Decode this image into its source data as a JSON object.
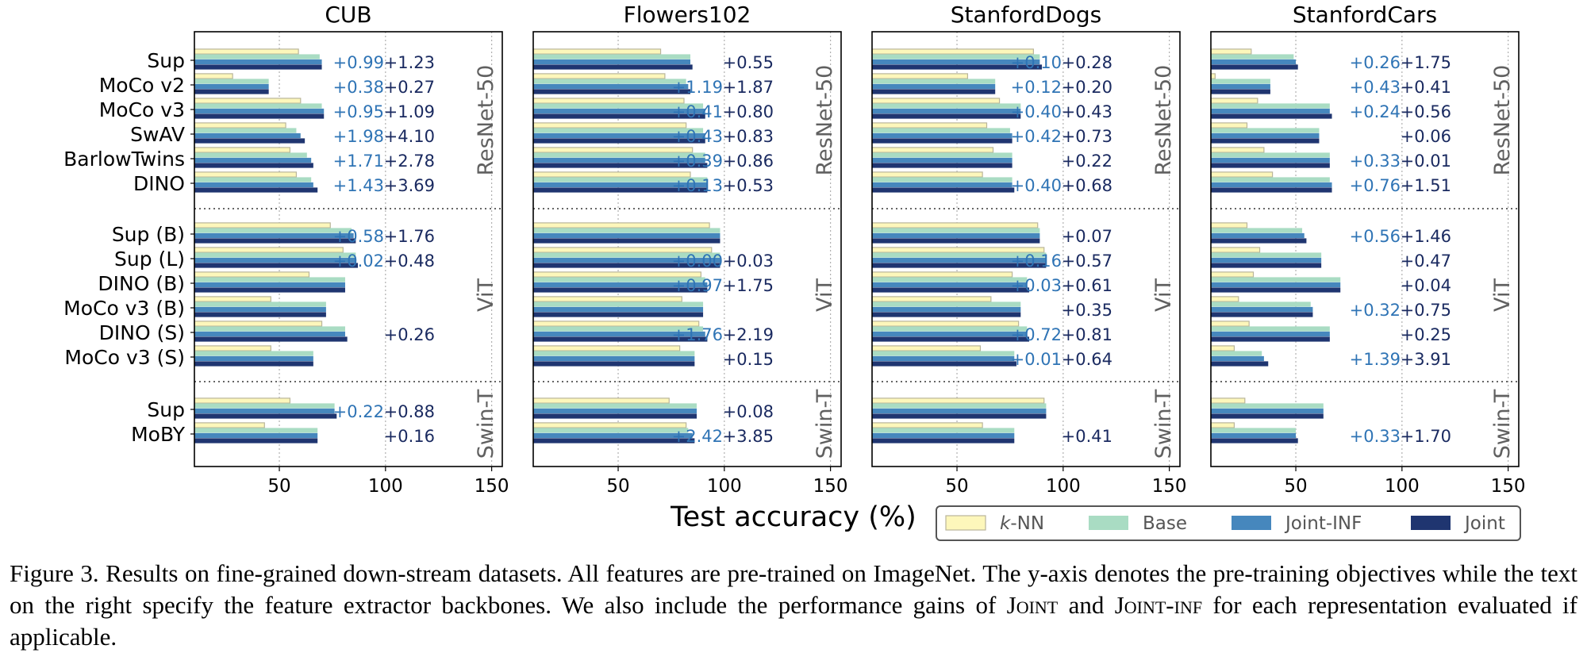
{
  "figure": {
    "xlabel": "Test accuracy (%)",
    "legend": [
      {
        "label": "k-NN",
        "italic_prefix": "k",
        "rest": "-NN",
        "color": "#fdf7bb"
      },
      {
        "label": "Base",
        "color": "#a9dcc3"
      },
      {
        "label": "Joint-INF",
        "color": "#4687bd"
      },
      {
        "label": "Joint",
        "color": "#1f3570"
      }
    ],
    "legend_position": "bottom-right"
  },
  "chart_data": [
    {
      "type": "bar",
      "title": "CUB",
      "xlim": [
        10,
        155
      ],
      "xticks": [
        50,
        100,
        150
      ],
      "groups": [
        {
          "backbone": "ResNet-50",
          "rows": [
            {
              "label": "Sup",
              "knn": 59,
              "base": 69,
              "jinf": 70,
              "joint": 70,
              "gain_inf": "+0.99",
              "gain_joint": "+1.23"
            },
            {
              "label": "MoCo v2",
              "knn": 28,
              "base": 45,
              "jinf": 45,
              "joint": 45,
              "gain_inf": "+0.38",
              "gain_joint": "+0.27"
            },
            {
              "label": "MoCo v3",
              "knn": 60,
              "base": 70,
              "jinf": 71,
              "joint": 71,
              "gain_inf": "+0.95",
              "gain_joint": "+1.09"
            },
            {
              "label": "SwAV",
              "knn": 53,
              "base": 58,
              "jinf": 60,
              "joint": 62,
              "gain_inf": "+1.98",
              "gain_joint": "+4.10"
            },
            {
              "label": "BarlowTwins",
              "knn": 55,
              "base": 63,
              "jinf": 65,
              "joint": 66,
              "gain_inf": "+1.71",
              "gain_joint": "+2.78"
            },
            {
              "label": "DINO",
              "knn": 58,
              "base": 65,
              "jinf": 66,
              "joint": 68,
              "gain_inf": "+1.43",
              "gain_joint": "+3.69"
            }
          ]
        },
        {
          "backbone": "ViT",
          "rows": [
            {
              "label": "Sup (B)",
              "knn": 74,
              "base": 84,
              "jinf": 85,
              "joint": 86,
              "gain_inf": "+0.58",
              "gain_joint": "+1.76"
            },
            {
              "label": "Sup (L)",
              "knn": 80,
              "base": 86,
              "jinf": 86,
              "joint": 87,
              "gain_inf": "+0.02",
              "gain_joint": "+0.48"
            },
            {
              "label": "DINO (B)",
              "knn": 64,
              "base": 81,
              "jinf": 81,
              "joint": 81,
              "gain_inf": "",
              "gain_joint": ""
            },
            {
              "label": "MoCo v3 (B)",
              "knn": 46,
              "base": 72,
              "jinf": 72,
              "joint": 72,
              "gain_inf": "",
              "gain_joint": ""
            },
            {
              "label": "DINO (S)",
              "knn": 70,
              "base": 81,
              "jinf": 81,
              "joint": 82,
              "gain_inf": "",
              "gain_joint": "+0.26"
            },
            {
              "label": "MoCo v3 (S)",
              "knn": 46,
              "base": 66,
              "jinf": 66,
              "joint": 66,
              "gain_inf": "",
              "gain_joint": ""
            }
          ]
        },
        {
          "backbone": "Swin-T",
          "rows": [
            {
              "label": "Sup",
              "knn": 55,
              "base": 76,
              "jinf": 76,
              "joint": 77,
              "gain_inf": "+0.22",
              "gain_joint": "+0.88"
            },
            {
              "label": "MoBY",
              "knn": 43,
              "base": 68,
              "jinf": 68,
              "joint": 68,
              "gain_inf": "",
              "gain_joint": "+0.16"
            }
          ]
        }
      ]
    },
    {
      "type": "bar",
      "title": "Flowers102",
      "xlim": [
        10,
        155
      ],
      "xticks": [
        50,
        100,
        150
      ],
      "groups": [
        {
          "backbone": "ResNet-50",
          "rows": [
            {
              "label": "Sup",
              "knn": 70,
              "base": 84,
              "jinf": 84,
              "joint": 85,
              "gain_inf": "",
              "gain_joint": "+0.55"
            },
            {
              "label": "MoCo v2",
              "knn": 72,
              "base": 82,
              "jinf": 83,
              "joint": 84,
              "gain_inf": "+1.19",
              "gain_joint": "+1.87"
            },
            {
              "label": "MoCo v3",
              "knn": 81,
              "base": 90,
              "jinf": 91,
              "joint": 91,
              "gain_inf": "+0.41",
              "gain_joint": "+0.80"
            },
            {
              "label": "SwAV",
              "knn": 82,
              "base": 90,
              "jinf": 91,
              "joint": 91,
              "gain_inf": "+0.43",
              "gain_joint": "+0.83"
            },
            {
              "label": "BarlowTwins",
              "knn": 85,
              "base": 91,
              "jinf": 91,
              "joint": 92,
              "gain_inf": "+0.39",
              "gain_joint": "+0.86"
            },
            {
              "label": "DINO",
              "knn": 84,
              "base": 92,
              "jinf": 92,
              "joint": 92,
              "gain_inf": "+0.13",
              "gain_joint": "+0.53"
            }
          ]
        },
        {
          "backbone": "ViT",
          "rows": [
            {
              "label": "Sup (B)",
              "knn": 93,
              "base": 98,
              "jinf": 98,
              "joint": 98,
              "gain_inf": "",
              "gain_joint": ""
            },
            {
              "label": "Sup (L)",
              "knn": 94,
              "base": 98,
              "jinf": 98,
              "joint": 98,
              "gain_inf": "+0.00",
              "gain_joint": "+0.03"
            },
            {
              "label": "DINO (B)",
              "knn": 89,
              "base": 91,
              "jinf": 92,
              "joint": 92,
              "gain_inf": "+0.97",
              "gain_joint": "+1.75"
            },
            {
              "label": "MoCo v3 (B)",
              "knn": 80,
              "base": 90,
              "jinf": 90,
              "joint": 90,
              "gain_inf": "",
              "gain_joint": ""
            },
            {
              "label": "DINO (S)",
              "knn": 88,
              "base": 90,
              "jinf": 91,
              "joint": 92,
              "gain_inf": "+1.76",
              "gain_joint": "+2.19"
            },
            {
              "label": "MoCo v3 (S)",
              "knn": 79,
              "base": 86,
              "jinf": 86,
              "joint": 86,
              "gain_inf": "",
              "gain_joint": "+0.15"
            }
          ]
        },
        {
          "backbone": "Swin-T",
          "rows": [
            {
              "label": "Sup",
              "knn": 74,
              "base": 87,
              "jinf": 87,
              "joint": 87,
              "gain_inf": "",
              "gain_joint": "+0.08"
            },
            {
              "label": "MoBY",
              "knn": 82,
              "base": 83,
              "jinf": 85,
              "joint": 86,
              "gain_inf": "+2.42",
              "gain_joint": "+3.85"
            }
          ]
        }
      ]
    },
    {
      "type": "bar",
      "title": "StanfordDogs",
      "xlim": [
        10,
        155
      ],
      "xticks": [
        50,
        100,
        150
      ],
      "groups": [
        {
          "backbone": "ResNet-50",
          "rows": [
            {
              "label": "Sup",
              "knn": 86,
              "base": 89,
              "jinf": 89,
              "joint": 90,
              "gain_inf": "+0.10",
              "gain_joint": "+0.28"
            },
            {
              "label": "MoCo v2",
              "knn": 55,
              "base": 68,
              "jinf": 68,
              "joint": 68,
              "gain_inf": "+0.12",
              "gain_joint": "+0.20"
            },
            {
              "label": "MoCo v3",
              "knn": 70,
              "base": 80,
              "jinf": 80,
              "joint": 80,
              "gain_inf": "+0.40",
              "gain_joint": "+0.43"
            },
            {
              "label": "SwAV",
              "knn": 64,
              "base": 75,
              "jinf": 76,
              "joint": 76,
              "gain_inf": "+0.42",
              "gain_joint": "+0.73"
            },
            {
              "label": "BarlowTwins",
              "knn": 67,
              "base": 76,
              "jinf": 76,
              "joint": 76,
              "gain_inf": "",
              "gain_joint": "+0.22"
            },
            {
              "label": "DINO",
              "knn": 62,
              "base": 76,
              "jinf": 76,
              "joint": 77,
              "gain_inf": "+0.40",
              "gain_joint": "+0.68"
            }
          ]
        },
        {
          "backbone": "ViT",
          "rows": [
            {
              "label": "Sup (B)",
              "knn": 88,
              "base": 89,
              "jinf": 89,
              "joint": 89,
              "gain_inf": "",
              "gain_joint": "+0.07"
            },
            {
              "label": "Sup (L)",
              "knn": 91,
              "base": 92,
              "jinf": 92,
              "joint": 92,
              "gain_inf": "+0.16",
              "gain_joint": "+0.57"
            },
            {
              "label": "DINO (B)",
              "knn": 76,
              "base": 83,
              "jinf": 83,
              "joint": 84,
              "gain_inf": "+0.03",
              "gain_joint": "+0.61"
            },
            {
              "label": "MoCo v3 (B)",
              "knn": 66,
              "base": 80,
              "jinf": 80,
              "joint": 80,
              "gain_inf": "",
              "gain_joint": "+0.35"
            },
            {
              "label": "DINO (S)",
              "knn": 79,
              "base": 83,
              "jinf": 83,
              "joint": 84,
              "gain_inf": "+0.72",
              "gain_joint": "+0.81"
            },
            {
              "label": "MoCo v3 (S)",
              "knn": 61,
              "base": 77,
              "jinf": 77,
              "joint": 78,
              "gain_inf": "+0.01",
              "gain_joint": "+0.64"
            }
          ]
        },
        {
          "backbone": "Swin-T",
          "rows": [
            {
              "label": "Sup",
              "knn": 91,
              "base": 92,
              "jinf": 92,
              "joint": 92,
              "gain_inf": "",
              "gain_joint": ""
            },
            {
              "label": "MoBY",
              "knn": 62,
              "base": 77,
              "jinf": 77,
              "joint": 77,
              "gain_inf": "",
              "gain_joint": "+0.41"
            }
          ]
        }
      ]
    },
    {
      "type": "bar",
      "title": "StanfordCars",
      "xlim": [
        10,
        155
      ],
      "xticks": [
        50,
        100,
        150
      ],
      "groups": [
        {
          "backbone": "ResNet-50",
          "rows": [
            {
              "label": "Sup",
              "knn": 29,
              "base": 49,
              "jinf": 50,
              "joint": 51,
              "gain_inf": "+0.26",
              "gain_joint": "+1.75"
            },
            {
              "label": "MoCo v2",
              "knn": 12,
              "base": 38,
              "jinf": 38,
              "joint": 38,
              "gain_inf": "+0.43",
              "gain_joint": "+0.41"
            },
            {
              "label": "MoCo v3",
              "knn": 32,
              "base": 66,
              "jinf": 66,
              "joint": 67,
              "gain_inf": "+0.24",
              "gain_joint": "+0.56"
            },
            {
              "label": "SwAV",
              "knn": 27,
              "base": 61,
              "jinf": 61,
              "joint": 61,
              "gain_inf": "",
              "gain_joint": "+0.06"
            },
            {
              "label": "BarlowTwins",
              "knn": 35,
              "base": 66,
              "jinf": 66,
              "joint": 66,
              "gain_inf": "+0.33",
              "gain_joint": "+0.01"
            },
            {
              "label": "DINO",
              "knn": 39,
              "base": 66,
              "jinf": 67,
              "joint": 67,
              "gain_inf": "+0.76",
              "gain_joint": "+1.51"
            }
          ]
        },
        {
          "backbone": "ViT",
          "rows": [
            {
              "label": "Sup (B)",
              "knn": 27,
              "base": 53,
              "jinf": 54,
              "joint": 55,
              "gain_inf": "+0.56",
              "gain_joint": "+1.46"
            },
            {
              "label": "Sup (L)",
              "knn": 33,
              "base": 62,
              "jinf": 62,
              "joint": 62,
              "gain_inf": "",
              "gain_joint": "+0.47"
            },
            {
              "label": "DINO (B)",
              "knn": 30,
              "base": 71,
              "jinf": 71,
              "joint": 71,
              "gain_inf": "",
              "gain_joint": "+0.04"
            },
            {
              "label": "MoCo v3 (B)",
              "knn": 23,
              "base": 57,
              "jinf": 58,
              "joint": 58,
              "gain_inf": "+0.32",
              "gain_joint": "+0.75"
            },
            {
              "label": "DINO (S)",
              "knn": 28,
              "base": 66,
              "jinf": 66,
              "joint": 66,
              "gain_inf": "",
              "gain_joint": "+0.25"
            },
            {
              "label": "MoCo v3 (S)",
              "knn": 21,
              "base": 34,
              "jinf": 35,
              "joint": 37,
              "gain_inf": "+1.39",
              "gain_joint": "+3.91"
            }
          ]
        },
        {
          "backbone": "Swin-T",
          "rows": [
            {
              "label": "Sup",
              "knn": 26,
              "base": 63,
              "jinf": 63,
              "joint": 63,
              "gain_inf": "",
              "gain_joint": ""
            },
            {
              "label": "MoBY",
              "knn": 21,
              "base": 50,
              "jinf": 50,
              "joint": 51,
              "gain_inf": "+0.33",
              "gain_joint": "+1.70"
            }
          ]
        }
      ]
    }
  ],
  "caption": {
    "segments": [
      {
        "text": "Figure 3.  Results on fine-grained down-stream datasets.  All features are pre-trained on ImageNet.  The y-axis denotes the pre-training objectives while the text on the right specify the feature extractor backbones. We also include the performance gains of ",
        "sc": false
      },
      {
        "text": "Joint",
        "sc": true
      },
      {
        "text": " and ",
        "sc": false
      },
      {
        "text": "Joint-inf",
        "sc": true
      },
      {
        "text": " for each representation evaluated if applicable.",
        "sc": false
      }
    ]
  }
}
